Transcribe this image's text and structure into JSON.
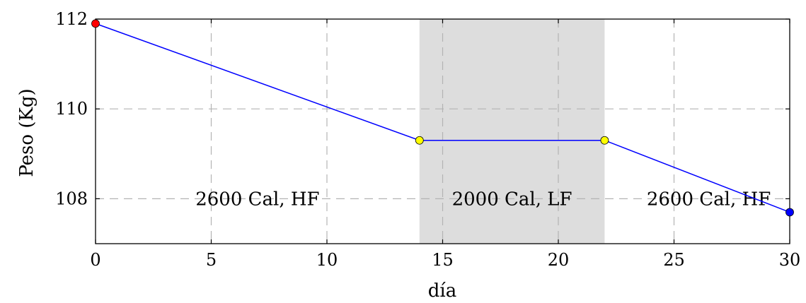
{
  "chart_data": {
    "type": "line",
    "xlabel": "día",
    "ylabel": "Peso (Kg)",
    "xlim": [
      0,
      30
    ],
    "ylim": [
      107,
      112
    ],
    "x_ticks": [
      0,
      5,
      10,
      15,
      20,
      25,
      30
    ],
    "y_ticks": [
      108,
      110,
      112
    ],
    "grid": true,
    "shaded_regions": [
      {
        "x_start": 14,
        "x_end": 22,
        "color": "#dddddd"
      }
    ],
    "region_labels": [
      {
        "text": "2600 Cal, HF",
        "x": 7,
        "y": 108
      },
      {
        "text": "2000 Cal, LF",
        "x": 18,
        "y": 108
      },
      {
        "text": "2600 Cal, HF",
        "x": 26.5,
        "y": 108
      }
    ],
    "series": [
      {
        "color": "#0000ff",
        "x": [
          0,
          14,
          22,
          30
        ],
        "y": [
          111.9,
          109.3,
          109.3,
          107.7
        ],
        "marker_colors": [
          "#ff0000",
          "#ffff00",
          "#ffff00",
          "#0000ff"
        ]
      }
    ]
  }
}
